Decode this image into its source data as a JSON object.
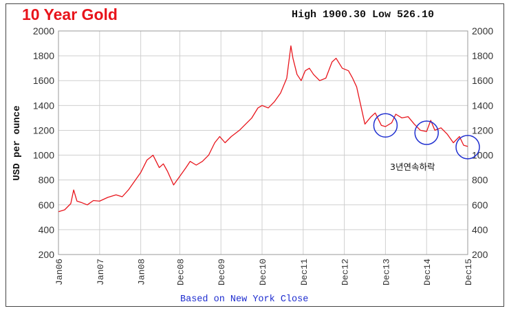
{
  "header": {
    "title": "10 Year Gold",
    "high_low": "High 1900.30 Low 526.10"
  },
  "footer": {
    "note": "Based on New York Close"
  },
  "annotation": {
    "text": "3년연속하락"
  },
  "colors": {
    "line": "#e8141b",
    "grid": "#cfcfcf",
    "circles": "#1f2fd0",
    "title": "#e8141b"
  },
  "chart_data": {
    "type": "line",
    "title": "10 Year Gold",
    "ylabel": "USD per ounce",
    "xlabel": "",
    "ylim": [
      200,
      2000
    ],
    "yticks": [
      200,
      400,
      600,
      800,
      1000,
      1200,
      1400,
      1600,
      1800,
      2000
    ],
    "xtick_labels": [
      "Jan06",
      "Jan07",
      "Jan08",
      "Dec08",
      "Dec09",
      "Dec10",
      "Dec11",
      "Dec12",
      "Dec13",
      "Dec14",
      "Dec15"
    ],
    "xtick_dates": [
      2006.0,
      2007.0,
      2008.0,
      2008.95,
      2009.95,
      2010.95,
      2011.95,
      2012.95,
      2013.95,
      2014.95,
      2015.95
    ],
    "xlim": [
      2006.0,
      2015.95
    ],
    "grid": true,
    "right_axis": true,
    "series": [
      {
        "x": [
          2006.0,
          2006.15,
          2006.3,
          2006.37,
          2006.45,
          2006.55,
          2006.7,
          2006.85,
          2007.0,
          2007.2,
          2007.4,
          2007.55,
          2007.7,
          2007.85,
          2008.0,
          2008.15,
          2008.3,
          2008.45,
          2008.55,
          2008.65,
          2008.8,
          2008.95,
          2009.1,
          2009.2,
          2009.35,
          2009.5,
          2009.65,
          2009.8,
          2009.92,
          2010.05,
          2010.2,
          2010.4,
          2010.55,
          2010.7,
          2010.85,
          2010.95,
          2011.1,
          2011.25,
          2011.4,
          2011.55,
          2011.65,
          2011.7,
          2011.8,
          2011.9,
          2012.0,
          2012.1,
          2012.2,
          2012.35,
          2012.5,
          2012.65,
          2012.75,
          2012.9,
          2013.05,
          2013.15,
          2013.25,
          2013.35,
          2013.45,
          2013.6,
          2013.7,
          2013.85,
          2013.95,
          2014.1,
          2014.2,
          2014.35,
          2014.5,
          2014.65,
          2014.8,
          2014.95,
          2015.05,
          2015.15,
          2015.3,
          2015.45,
          2015.6,
          2015.75,
          2015.85,
          2015.95
        ],
        "y": [
          545,
          560,
          610,
          720,
          630,
          620,
          600,
          635,
          630,
          660,
          680,
          665,
          720,
          790,
          860,
          960,
          1000,
          900,
          930,
          870,
          760,
          830,
          900,
          950,
          920,
          950,
          1000,
          1100,
          1150,
          1100,
          1150,
          1200,
          1250,
          1300,
          1380,
          1400,
          1380,
          1430,
          1500,
          1620,
          1880,
          1780,
          1650,
          1600,
          1680,
          1700,
          1650,
          1600,
          1620,
          1750,
          1780,
          1700,
          1680,
          1620,
          1550,
          1400,
          1250,
          1310,
          1340,
          1240,
          1230,
          1260,
          1330,
          1300,
          1310,
          1250,
          1200,
          1190,
          1280,
          1200,
          1220,
          1170,
          1100,
          1150,
          1080,
          1070
        ]
      }
    ],
    "highlight_circles": [
      {
        "x": 2013.95,
        "y": 1240
      },
      {
        "x": 2014.95,
        "y": 1180
      },
      {
        "x": 2015.95,
        "y": 1065
      }
    ]
  }
}
